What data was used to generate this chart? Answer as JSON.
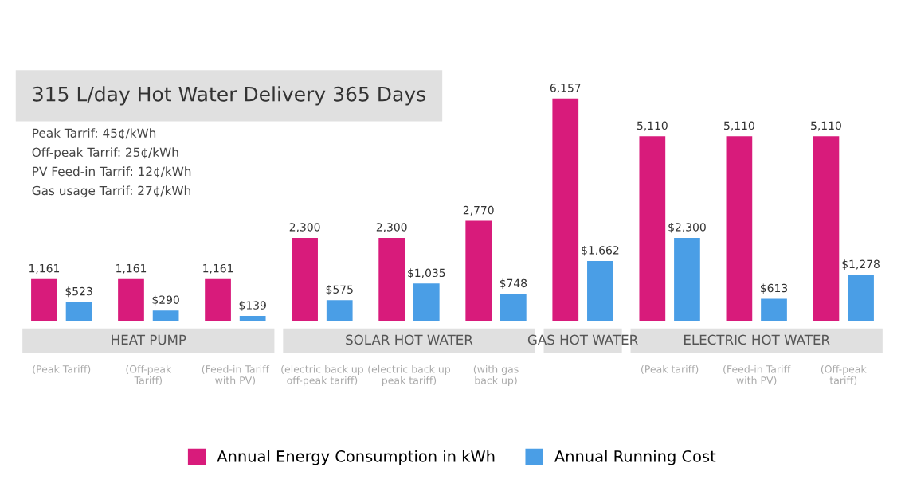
{
  "chart_data": {
    "type": "bar",
    "title": "315 L/day Hot Water Delivery 365 Days",
    "categories": [
      "(Peak Tariff)",
      "(Off-peak\nTariff)",
      "(Feed-in Tariff\nwith PV)",
      "(electric back up\noff-peak tariff)",
      "(electric back up\npeak tariff)",
      "(with gas\nback up)",
      null,
      "(Peak tariff)",
      "(Feed-in Tariff\nwith PV)",
      "(Off-peak\ntariff)"
    ],
    "series": [
      {
        "name": "Annual Energy Consumption in kWh",
        "color": "#d81b7b",
        "values": [
          1161,
          1161,
          1161,
          2300,
          2300,
          2770,
          6157,
          5110,
          5110,
          5110
        ],
        "value_labels": [
          "1,161",
          "1,161",
          "1,161",
          "2,300",
          "2,300",
          "2,770",
          "6,157",
          "5,110",
          "5,110",
          "5,110"
        ]
      },
      {
        "name": "Annual Running Cost",
        "color": "#4a9ee6",
        "values": [
          523,
          290,
          139,
          575,
          1035,
          748,
          1662,
          2300,
          613,
          1278
        ],
        "value_labels": [
          "$523",
          "$290",
          "$139",
          "$575",
          "$1,035",
          "$748",
          "$1,662",
          "$2,300",
          "$613",
          "$1,278"
        ]
      }
    ],
    "annotations": [
      "Peak Tarrif: 45¢/kWh",
      "Off-peak Tarrif: 25¢/kWh",
      "PV Feed-in Tarrif: 12¢/kWh",
      "Gas usage Tarrif: 27¢/kWh",
      "HEAT PUMP",
      "SOLAR HOT WATER",
      "GAS HOT WATER",
      "ELECTRIC HOT WATER"
    ],
    "legend": "bottom"
  }
}
